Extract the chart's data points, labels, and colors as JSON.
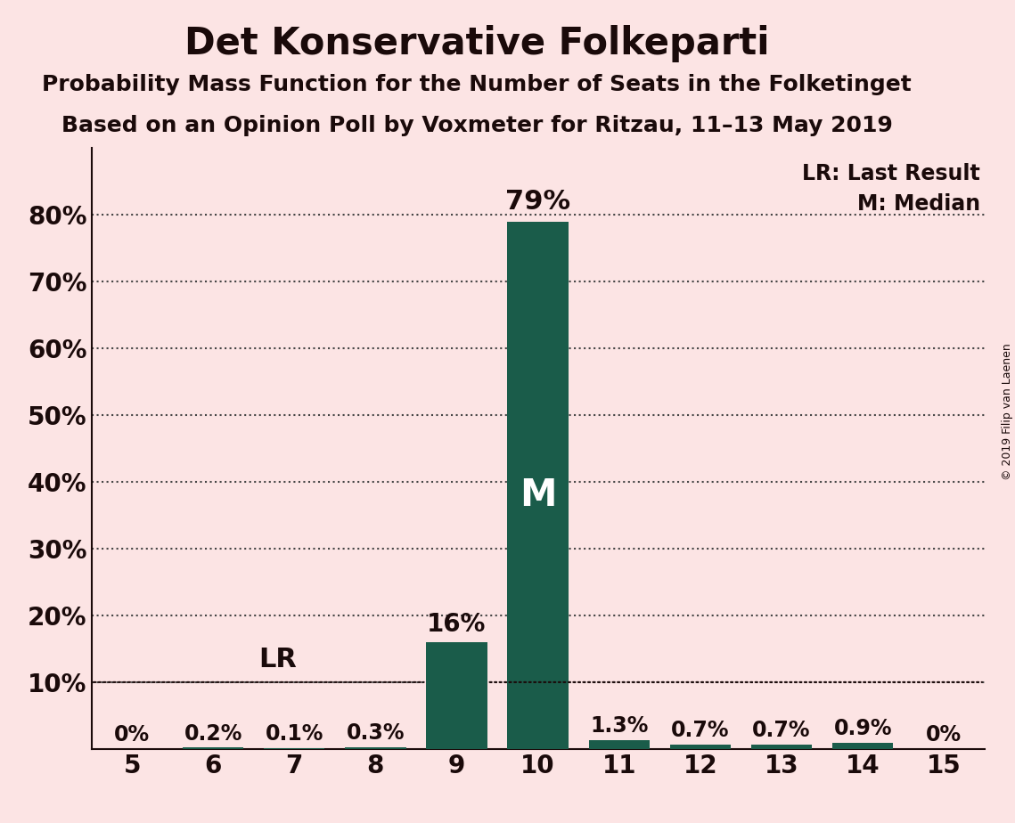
{
  "title": "Det Konservative Folkeparti",
  "subtitle1": "Probability Mass Function for the Number of Seats in the Folketinget",
  "subtitle2": "Based on an Opinion Poll by Voxmeter for Ritzau, 11–13 May 2019",
  "copyright": "© 2019 Filip van Laenen",
  "seats": [
    5,
    6,
    7,
    8,
    9,
    10,
    11,
    12,
    13,
    14,
    15
  ],
  "probabilities": [
    0.0,
    0.2,
    0.1,
    0.3,
    16.0,
    79.0,
    1.3,
    0.7,
    0.7,
    0.9,
    0.0
  ],
  "labels": [
    "0%",
    "0.2%",
    "0.1%",
    "0.3%",
    "16%",
    "79%",
    "1.3%",
    "0.7%",
    "0.7%",
    "0.9%",
    "0%"
  ],
  "bar_color": "#1a5c4a",
  "background_color": "#fce4e4",
  "text_color": "#1a0a0a",
  "lr_seat": 9,
  "lr_value": 9.0,
  "median_seat": 10,
  "ylim": [
    0,
    90
  ],
  "yticks": [
    10,
    20,
    30,
    40,
    50,
    60,
    70,
    80
  ],
  "ytick_labels": [
    "10%",
    "20%",
    "30%",
    "40%",
    "50%",
    "60%",
    "70%",
    "80%"
  ],
  "legend_lr": "LR: Last Result",
  "legend_m": "M: Median",
  "lr_label": "LR",
  "m_label": "M",
  "figsize": [
    11.39,
    9.24
  ],
  "dpi": 100
}
